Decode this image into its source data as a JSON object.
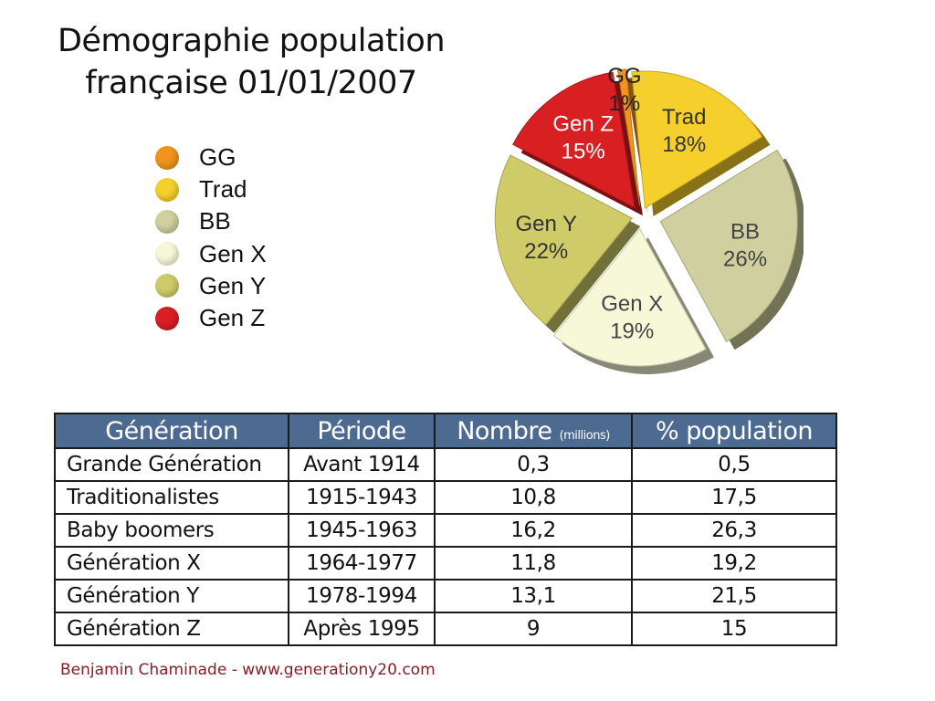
{
  "title": {
    "line1": "Démographie population",
    "line2": "française 01/01/2007"
  },
  "chart_data": {
    "type": "pie",
    "exploded": true,
    "labels": [
      "GG",
      "Trad",
      "BB",
      "Gen X",
      "Gen Y",
      "Gen Z"
    ],
    "values": [
      1,
      18,
      26,
      19,
      22,
      15
    ],
    "value_labels": [
      "1%",
      "18%",
      "26%",
      "19%",
      "22%",
      "15%"
    ],
    "colors": [
      "#f0941e",
      "#f5d02c",
      "#cfcf9f",
      "#f7f8d8",
      "#cfcb68",
      "#d81f22"
    ],
    "legend_position": "left"
  },
  "legend": [
    {
      "label": "GG",
      "color": "#f0941e"
    },
    {
      "label": "Trad",
      "color": "#f5d02c"
    },
    {
      "label": "BB",
      "color": "#cfcf9f"
    },
    {
      "label": "Gen X",
      "color": "#f7f8d8"
    },
    {
      "label": "Gen Y",
      "color": "#cfcb68"
    },
    {
      "label": "Gen Z",
      "color": "#d81f22"
    }
  ],
  "table": {
    "headers": {
      "generation": "Génération",
      "periode": "Période",
      "nombre": "Nombre",
      "nombre_unit": "(millions)",
      "pct": "% population"
    },
    "rows": [
      {
        "name": "Grande Génération",
        "period": "Avant 1914",
        "count": "0,3",
        "pct": "0,5"
      },
      {
        "name": "Traditionalistes",
        "period": "1915-1943",
        "count": "10,8",
        "pct": "17,5"
      },
      {
        "name": "Baby boomers",
        "period": "1945-1963",
        "count": "16,2",
        "pct": "26,3"
      },
      {
        "name": "Génération X",
        "period": "1964-1977",
        "count": "11,8",
        "pct": "19,2"
      },
      {
        "name": "Génération Y",
        "period": "1978-1994",
        "count": "13,1",
        "pct": "21,5"
      },
      {
        "name": "Génération Z",
        "period": "Après 1995",
        "count": "9",
        "pct": "15"
      }
    ]
  },
  "footer": "Benjamin Chaminade - www.generationy20.com"
}
